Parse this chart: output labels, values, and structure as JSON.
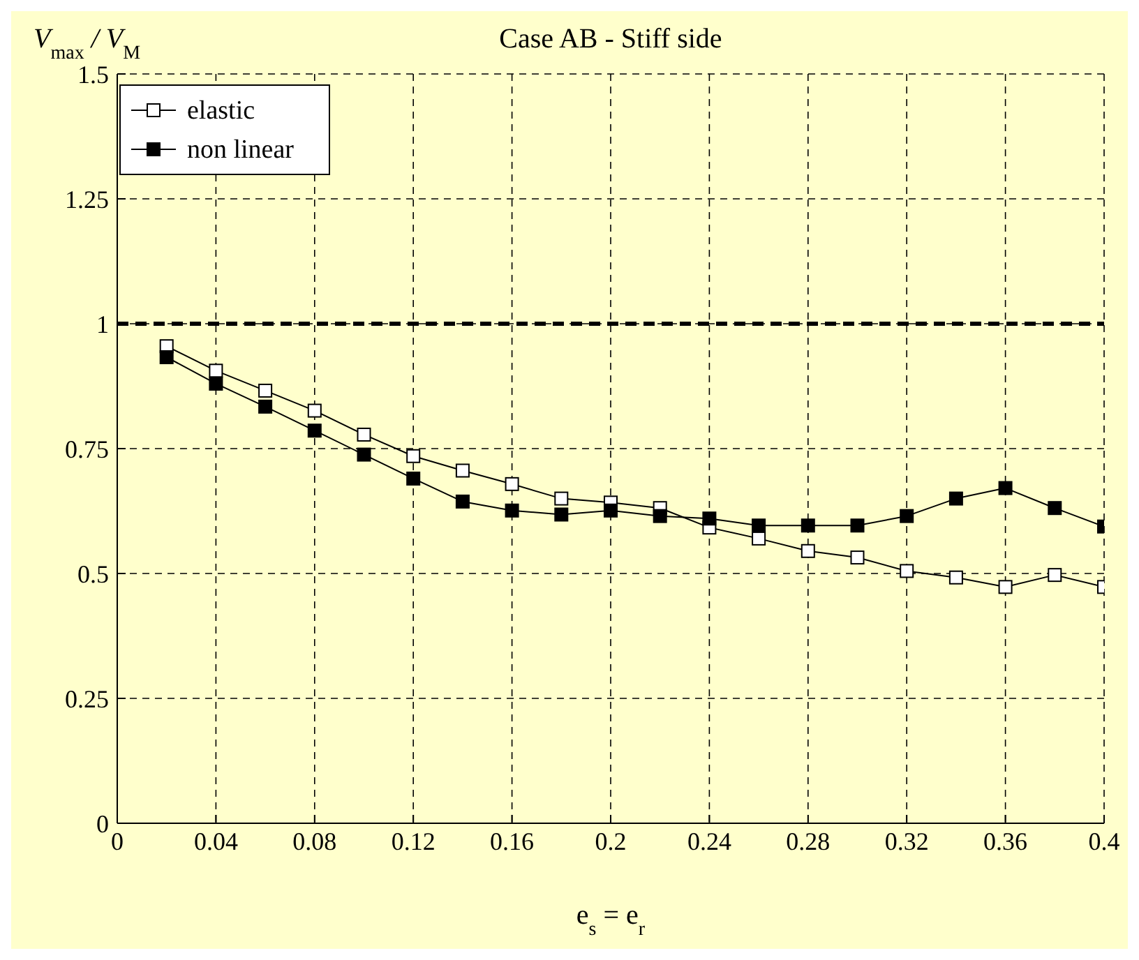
{
  "chart_data": {
    "type": "line",
    "title": "Case AB - Stiff side",
    "xlabel": "e$_{s}$ = e$_{r}$",
    "ylabel": "V$_{max}$ / V$_{M}$",
    "x": [
      0.02,
      0.04,
      0.06,
      0.08,
      0.1,
      0.12,
      0.14,
      0.16,
      0.18,
      0.2,
      0.22,
      0.24,
      0.26,
      0.28,
      0.3,
      0.32,
      0.34,
      0.36,
      0.38,
      0.4
    ],
    "series": [
      {
        "name": "elastic",
        "color": "#ffffff",
        "values": [
          0.955,
          0.906,
          0.866,
          0.826,
          0.778,
          0.735,
          0.706,
          0.679,
          0.65,
          0.642,
          0.631,
          0.592,
          0.57,
          0.545,
          0.532,
          0.505,
          0.492,
          0.473,
          0.497,
          0.473
        ]
      },
      {
        "name": "non linear",
        "color": "#000000",
        "values": [
          0.933,
          0.88,
          0.834,
          0.786,
          0.738,
          0.69,
          0.644,
          0.626,
          0.618,
          0.626,
          0.615,
          0.61,
          0.596,
          0.596,
          0.596,
          0.615,
          0.65,
          0.671,
          0.631,
          0.594
        ]
      }
    ],
    "xlim": [
      0,
      0.4
    ],
    "xticks": [
      0,
      0.04,
      0.08,
      0.12,
      0.16,
      0.2,
      0.24,
      0.28,
      0.32,
      0.36,
      0.4
    ],
    "ylim": [
      0,
      1.5
    ],
    "yticks": [
      0,
      0.25,
      0.5,
      0.75,
      1,
      1.25,
      1.5
    ],
    "ref_lines": [
      {
        "axis": "y",
        "value": 1,
        "color": "#000000",
        "line_style": "dashed"
      }
    ],
    "grid": true,
    "legend": "top left",
    "marker": "square",
    "line_style": "solid"
  }
}
